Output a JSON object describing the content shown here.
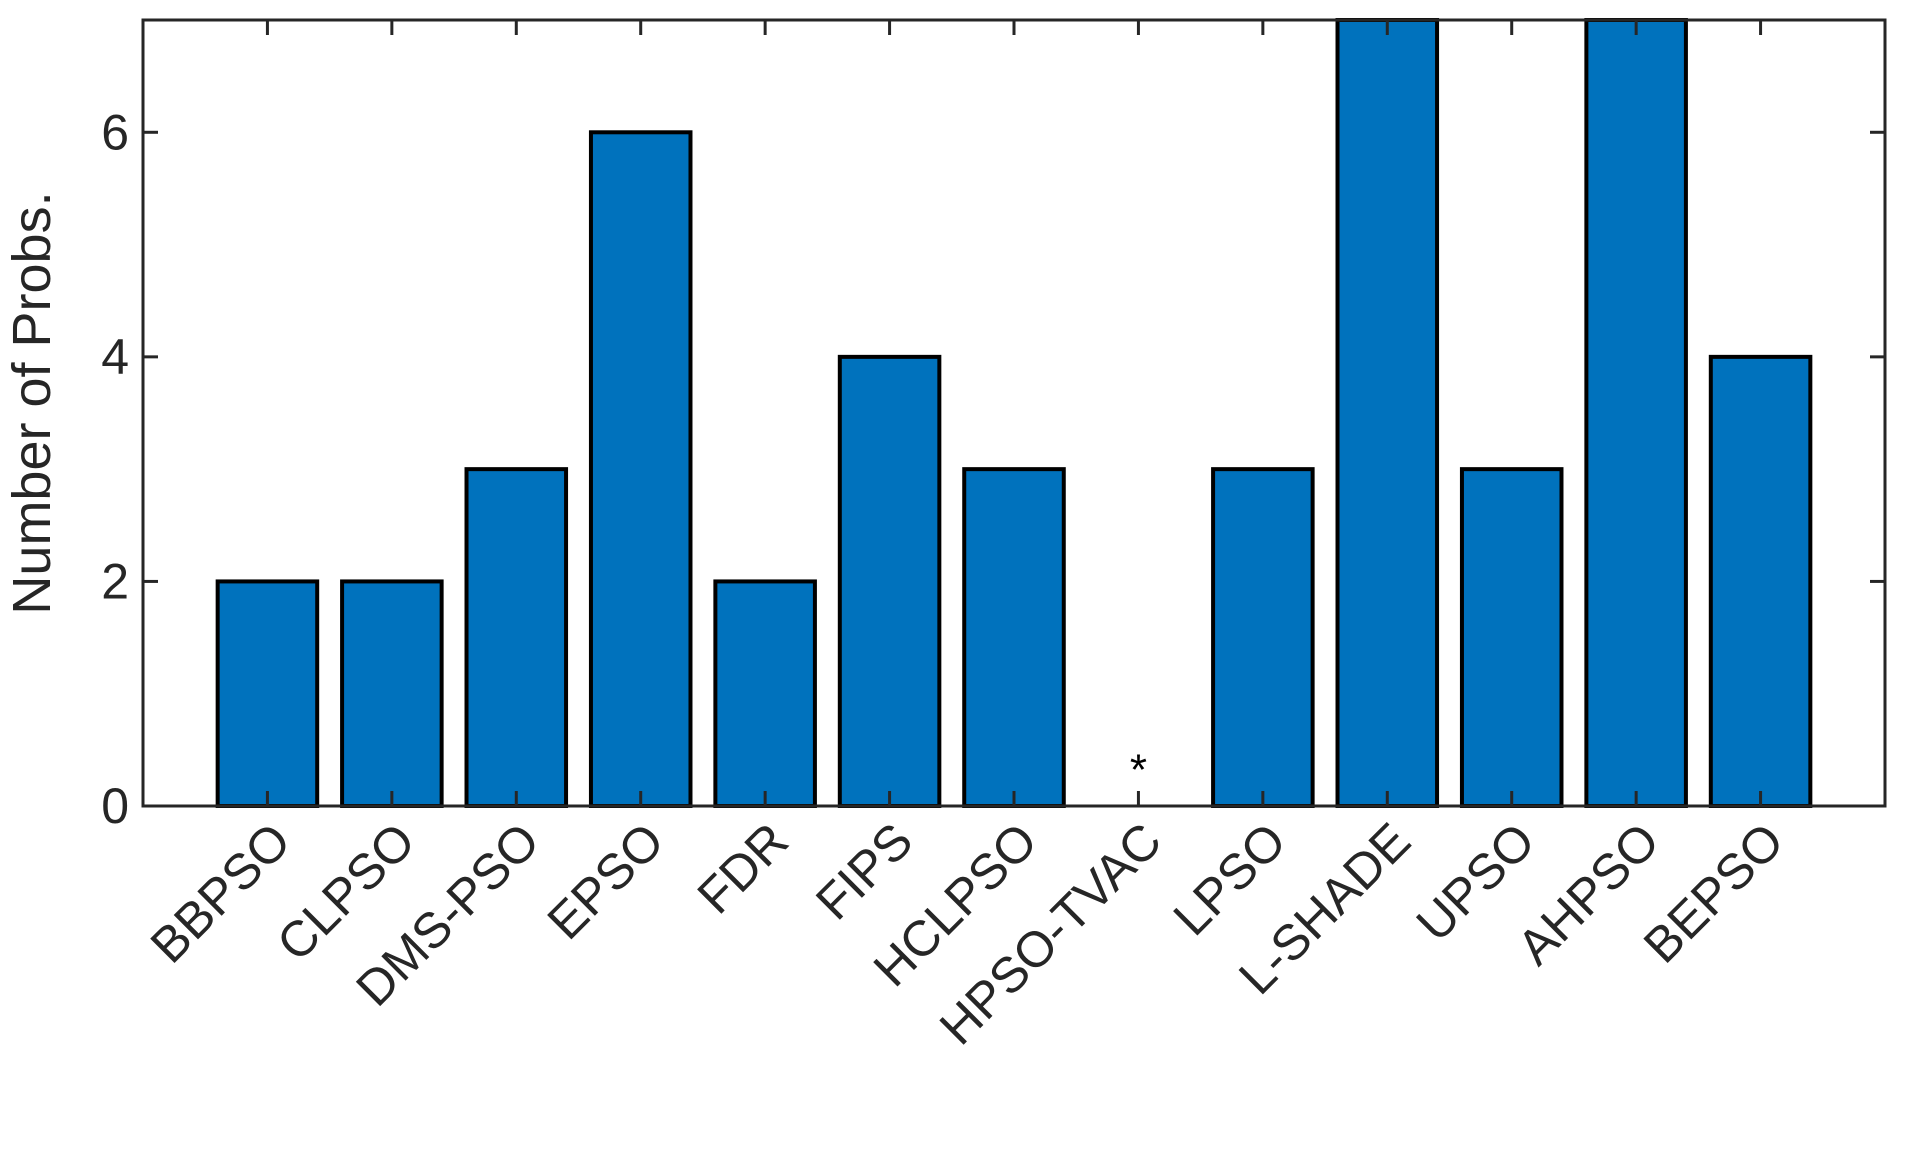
{
  "chart_data": {
    "type": "bar",
    "categories": [
      "BBPSO",
      "CLPSO",
      "DMS-PSO",
      "EPSO",
      "FDR",
      "FIPS",
      "HCLPSO",
      "HPSO-TVAC",
      "LPSO",
      "L-SHADE",
      "UPSO",
      "AHPSO",
      "BEPSO"
    ],
    "values": [
      2,
      2,
      3,
      6,
      2,
      4,
      3,
      0,
      3,
      7,
      3,
      7,
      4
    ],
    "annotations": [
      {
        "category": "HPSO-TVAC",
        "text": "*"
      }
    ],
    "title": "",
    "xlabel": "",
    "ylabel": "Number of Probs.",
    "ylim": [
      0,
      7
    ],
    "yticks": [
      0,
      2,
      4,
      6
    ],
    "grid": false,
    "bar_color": "#0072BD",
    "edge_color": "#000000",
    "axis_color": "#262626"
  }
}
